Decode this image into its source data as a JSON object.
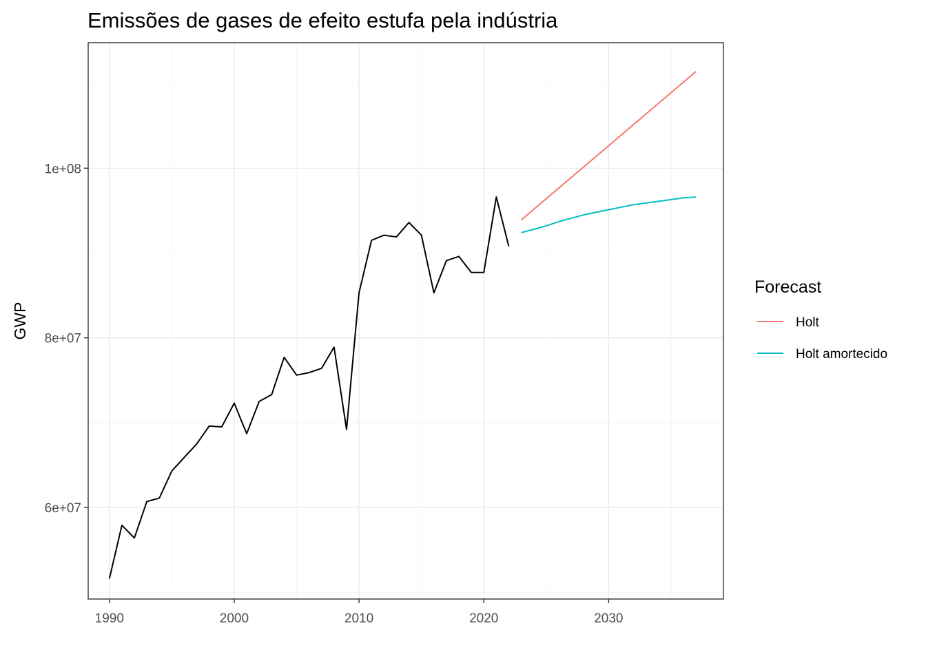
{
  "chart_data": {
    "type": "line",
    "title": "Emissões de gases de efeito estufa pela indústria",
    "xlabel": "",
    "ylabel": "GWP",
    "xlim": [
      1988.3,
      2039.2
    ],
    "ylim": [
      49200000,
      114800000
    ],
    "x_ticks": [
      1990,
      2000,
      2010,
      2020,
      2030
    ],
    "x_tick_labels": [
      "1990",
      "2000",
      "2010",
      "2020",
      "2030"
    ],
    "y_ticks": [
      60000000,
      80000000,
      100000000
    ],
    "y_tick_labels": [
      "6e+07",
      "8e+07",
      "1e+08"
    ],
    "grid": true,
    "legend": {
      "title": "Forecast",
      "position": "right"
    },
    "history": {
      "color": "#000000",
      "x": [
        1990,
        1991,
        1992,
        1993,
        1994,
        1995,
        1996,
        1997,
        1998,
        1999,
        2000,
        2001,
        2002,
        2003,
        2004,
        2005,
        2006,
        2007,
        2008,
        2009,
        2010,
        2011,
        2012,
        2013,
        2014,
        2015,
        2016,
        2017,
        2018,
        2019,
        2020,
        2021,
        2022
      ],
      "y": [
        51600000,
        57900000,
        56400000,
        60700000,
        61100000,
        64300000,
        65900000,
        67500000,
        69600000,
        69500000,
        72300000,
        68700000,
        72500000,
        73300000,
        77700000,
        75600000,
        75900000,
        76400000,
        78900000,
        69200000,
        85300000,
        91500000,
        92100000,
        91900000,
        93600000,
        92100000,
        85300000,
        89100000,
        89600000,
        87700000,
        87700000,
        96600000,
        90800000
      ]
    },
    "series": [
      {
        "name": "Holt",
        "color": "#F8766D",
        "x": [
          2023,
          2037
        ],
        "y": [
          93900000,
          111400000
        ]
      },
      {
        "name": "Holt amortecido",
        "color": "#00BFC4",
        "x": [
          2023,
          2024,
          2025,
          2026,
          2027,
          2028,
          2029,
          2030,
          2031,
          2032,
          2033,
          2034,
          2035,
          2036,
          2037
        ],
        "y": [
          92400000,
          92800000,
          93200000,
          93700000,
          94100000,
          94500000,
          94800000,
          95100000,
          95400000,
          95700000,
          95900000,
          96100000,
          96300000,
          96500000,
          96600000
        ]
      }
    ]
  }
}
